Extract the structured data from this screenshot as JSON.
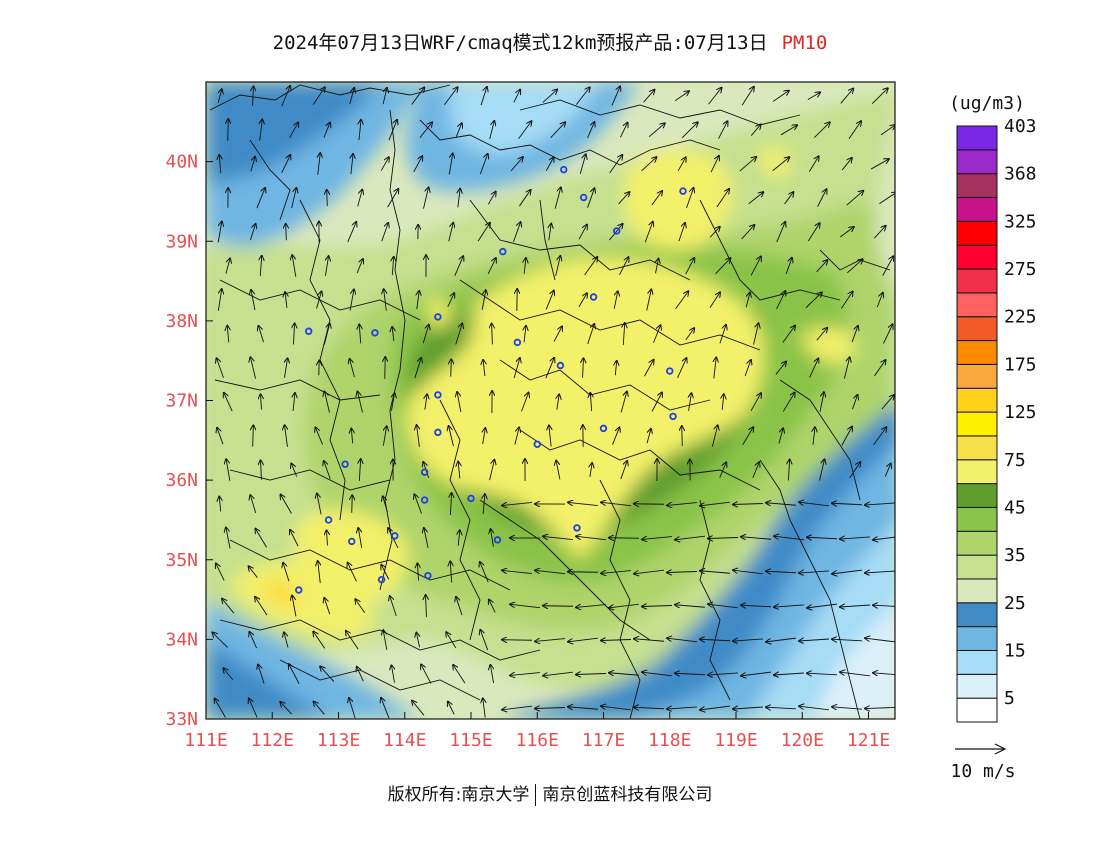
{
  "header": {
    "title": "2024年07月13日WRF/cmaq模式12km预报产品:07月13日",
    "variable": "PM10"
  },
  "footer": {
    "left": "版权所有:南京大学",
    "right": "南京创蓝科技有限公司"
  },
  "colors": {
    "title_variable": "#e8261c",
    "tick_labels": "#e85050",
    "vectors": "#111111",
    "boundaries": "#111111",
    "city_markers": "#1f3fe0"
  },
  "chart_data": {
    "type": "heatmap",
    "title": "2024年07月13日WRF/cmaq模式12km预报产品:07月13日",
    "variable": "PM10",
    "xlim": [
      111,
      121.4
    ],
    "ylim": [
      33,
      41
    ],
    "x_ticks": [
      111,
      112,
      113,
      114,
      115,
      116,
      117,
      118,
      119,
      120,
      121
    ],
    "x_tick_labels": [
      "111E",
      "112E",
      "113E",
      "114E",
      "115E",
      "116E",
      "117E",
      "118E",
      "119E",
      "120E",
      "121E"
    ],
    "y_ticks": [
      33,
      34,
      35,
      36,
      37,
      38,
      39,
      40
    ],
    "y_tick_labels": [
      "33N",
      "34N",
      "35N",
      "36N",
      "37N",
      "38N",
      "39N",
      "40N"
    ],
    "colorbar": {
      "units": "(ug/m3)",
      "label_values": [
        "5",
        "15",
        "25",
        "35",
        "45",
        "75",
        "125",
        "175",
        "225",
        "275",
        "325",
        "368",
        "403"
      ],
      "bins": [
        {
          "color": "#ffffff"
        },
        {
          "color": "#dcf0fa"
        },
        {
          "color": "#a6dcf5"
        },
        {
          "color": "#6fb6e3"
        },
        {
          "color": "#3f8bc7"
        },
        {
          "color": "#dbe8bd"
        },
        {
          "color": "#c5e08f"
        },
        {
          "color": "#aed46a"
        },
        {
          "color": "#8bc34a"
        },
        {
          "color": "#5f9e2f"
        },
        {
          "color": "#f3f06a"
        },
        {
          "color": "#f7df4a"
        },
        {
          "color": "#ffee00"
        },
        {
          "color": "#ffd21a"
        },
        {
          "color": "#f9a940"
        },
        {
          "color": "#fb8a00"
        },
        {
          "color": "#ef5a28"
        },
        {
          "color": "#ff6060"
        },
        {
          "color": "#f03048"
        },
        {
          "color": "#ff0030"
        },
        {
          "color": "#ff0000"
        },
        {
          "color": "#c8128a"
        },
        {
          "color": "#a83060"
        },
        {
          "color": "#9b28c8"
        },
        {
          "color": "#7a28e6"
        }
      ]
    },
    "vector_reference": {
      "label": "10 m/s",
      "speed": 10
    },
    "cities": [
      {
        "lon": 116.4,
        "lat": 39.9
      },
      {
        "lon": 116.7,
        "lat": 39.55
      },
      {
        "lon": 117.2,
        "lat": 39.13
      },
      {
        "lon": 118.2,
        "lat": 39.63
      },
      {
        "lon": 115.48,
        "lat": 38.87
      },
      {
        "lon": 116.85,
        "lat": 38.3
      },
      {
        "lon": 114.5,
        "lat": 38.05
      },
      {
        "lon": 115.7,
        "lat": 37.73
      },
      {
        "lon": 116.35,
        "lat": 37.44
      },
      {
        "lon": 112.55,
        "lat": 37.87
      },
      {
        "lon": 113.55,
        "lat": 37.85
      },
      {
        "lon": 118.0,
        "lat": 37.37
      },
      {
        "lon": 114.5,
        "lat": 37.07
      },
      {
        "lon": 114.5,
        "lat": 36.6
      },
      {
        "lon": 116.0,
        "lat": 36.45
      },
      {
        "lon": 117.0,
        "lat": 36.65
      },
      {
        "lon": 118.05,
        "lat": 36.8
      },
      {
        "lon": 113.1,
        "lat": 36.2
      },
      {
        "lon": 114.3,
        "lat": 36.1
      },
      {
        "lon": 114.3,
        "lat": 35.75
      },
      {
        "lon": 115.0,
        "lat": 35.77
      },
      {
        "lon": 112.85,
        "lat": 35.5
      },
      {
        "lon": 113.2,
        "lat": 35.23
      },
      {
        "lon": 113.85,
        "lat": 35.3
      },
      {
        "lon": 115.4,
        "lat": 35.25
      },
      {
        "lon": 116.6,
        "lat": 35.4
      },
      {
        "lon": 113.65,
        "lat": 34.75
      },
      {
        "lon": 114.35,
        "lat": 34.8
      },
      {
        "lon": 112.4,
        "lat": 34.62
      }
    ]
  }
}
